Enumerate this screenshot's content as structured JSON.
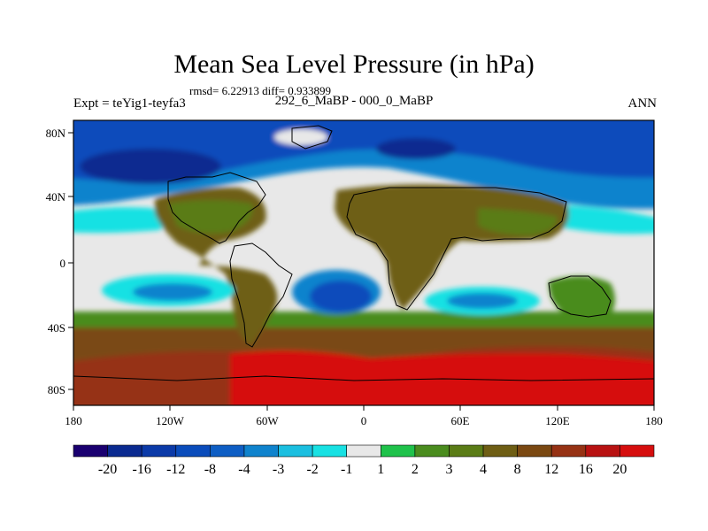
{
  "title": "Mean Sea Level Pressure (in hPa)",
  "stats_line": "rmsd= 6.22913 diff= 0.933899",
  "experiment_label": "Expt = teYig1-teyfa3",
  "subtitle": "292_6_MaBP - 000_0_MaBP",
  "season": "ANN",
  "map": {
    "x_ticks": [
      "180",
      "120W",
      "60W",
      "0",
      "60E",
      "120E",
      "180"
    ],
    "y_ticks": [
      "80N",
      "40N",
      "0",
      "40S",
      "80S"
    ],
    "background": "#e8e8e8",
    "lon_range": [
      -180,
      180
    ],
    "lat_range": [
      -90,
      90
    ]
  },
  "colorbar": {
    "colors": [
      "#1a0070",
      "#0a2a90",
      "#0b3aa8",
      "#0a4cbb",
      "#0e5ec4",
      "#0f83cd",
      "#1bbfe0",
      "#18e1e3",
      "#e8e8e8",
      "#1fc24b",
      "#4a8c1e",
      "#5a7c16",
      "#6e5e14",
      "#7a4812",
      "#963214",
      "#b81212",
      "#d60e0e"
    ],
    "labels": [
      "-20",
      "-16",
      "-12",
      "-8",
      "-4",
      "-3",
      "-2",
      "-1",
      "1",
      "2",
      "3",
      "4",
      "8",
      "12",
      "16",
      "20"
    ]
  }
}
